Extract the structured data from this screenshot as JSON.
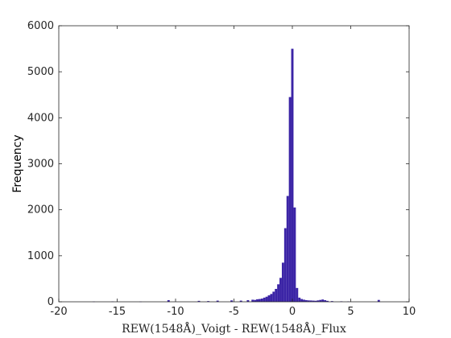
{
  "chart_data": {
    "type": "bar",
    "title": "",
    "xlabel": "REW(1548Å)_Voigt - REW(1548Å)_Flux",
    "ylabel": "Frequency",
    "xlim": [
      -20,
      10
    ],
    "ylim": [
      0,
      6000
    ],
    "xticks": [
      -20,
      -15,
      -10,
      -5,
      0,
      5,
      10
    ],
    "yticks": [
      0,
      1000,
      2000,
      3000,
      4000,
      5000,
      6000
    ],
    "xtick_labels": [
      "-20",
      "-15",
      "-10",
      "-5",
      "0",
      "5",
      "10"
    ],
    "ytick_labels": [
      "0",
      "1000",
      "2000",
      "3000",
      "4000",
      "5000",
      "6000"
    ],
    "grid": false,
    "bar_color": "#3b24a6",
    "bin_width": 0.2,
    "bins": [
      {
        "x": -17.0,
        "count": 5
      },
      {
        "x": -15.4,
        "count": 6
      },
      {
        "x": -13.0,
        "count": 4
      },
      {
        "x": -10.6,
        "count": 35
      },
      {
        "x": -8.0,
        "count": 20
      },
      {
        "x": -7.2,
        "count": 15
      },
      {
        "x": -6.4,
        "count": 25
      },
      {
        "x": -5.2,
        "count": 30
      },
      {
        "x": -4.4,
        "count": 25
      },
      {
        "x": -3.8,
        "count": 35
      },
      {
        "x": -3.4,
        "count": 45
      },
      {
        "x": -3.2,
        "count": 40
      },
      {
        "x": -3.0,
        "count": 55
      },
      {
        "x": -2.8,
        "count": 60
      },
      {
        "x": -2.6,
        "count": 70
      },
      {
        "x": -2.4,
        "count": 90
      },
      {
        "x": -2.2,
        "count": 110
      },
      {
        "x": -2.0,
        "count": 140
      },
      {
        "x": -1.8,
        "count": 170
      },
      {
        "x": -1.6,
        "count": 220
      },
      {
        "x": -1.4,
        "count": 280
      },
      {
        "x": -1.2,
        "count": 380
      },
      {
        "x": -1.0,
        "count": 520
      },
      {
        "x": -0.8,
        "count": 850
      },
      {
        "x": -0.6,
        "count": 1600
      },
      {
        "x": -0.4,
        "count": 2300
      },
      {
        "x": -0.2,
        "count": 4450
      },
      {
        "x": 0.0,
        "count": 5500
      },
      {
        "x": 0.2,
        "count": 2050
      },
      {
        "x": 0.4,
        "count": 300
      },
      {
        "x": 0.6,
        "count": 90
      },
      {
        "x": 0.8,
        "count": 60
      },
      {
        "x": 1.0,
        "count": 45
      },
      {
        "x": 1.2,
        "count": 35
      },
      {
        "x": 1.4,
        "count": 30
      },
      {
        "x": 1.6,
        "count": 28
      },
      {
        "x": 1.8,
        "count": 25
      },
      {
        "x": 2.0,
        "count": 22
      },
      {
        "x": 2.2,
        "count": 30
      },
      {
        "x": 2.4,
        "count": 40
      },
      {
        "x": 2.6,
        "count": 50
      },
      {
        "x": 2.8,
        "count": 35
      },
      {
        "x": 3.0,
        "count": 20
      },
      {
        "x": 3.4,
        "count": 15
      },
      {
        "x": 4.2,
        "count": 10
      },
      {
        "x": 4.8,
        "count": 8
      },
      {
        "x": 7.4,
        "count": 40
      }
    ]
  }
}
